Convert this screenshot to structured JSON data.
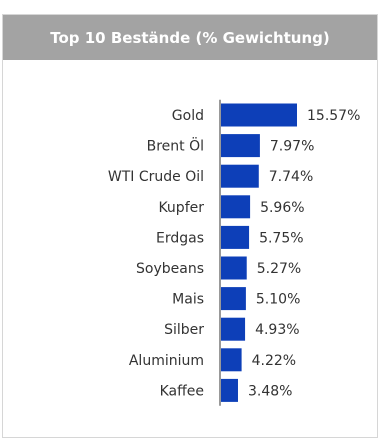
{
  "header": {
    "title": "Top 10 Bestände (% Gewichtung)"
  },
  "colors": {
    "bar": "#0d3fb8",
    "header_bg": "#a3a3a3",
    "axis": "#333333"
  },
  "chart_data": {
    "type": "bar",
    "orientation": "horizontal",
    "title": "Top 10 Bestände (% Gewichtung)",
    "categories": [
      "Gold",
      "Brent Öl",
      "WTI Crude Oil",
      "Kupfer",
      "Erdgas",
      "Soybeans",
      "Mais",
      "Silber",
      "Aluminium",
      "Kaffee"
    ],
    "values": [
      15.57,
      7.97,
      7.74,
      5.96,
      5.75,
      5.27,
      5.1,
      4.93,
      4.22,
      3.48
    ],
    "value_labels": [
      "15.57%",
      "7.97%",
      "7.74%",
      "5.96%",
      "5.75%",
      "5.27%",
      "5.10%",
      "4.93%",
      "4.22%",
      "3.48%"
    ],
    "xlim": [
      0,
      15.57
    ],
    "grid": false,
    "legend": "none"
  }
}
